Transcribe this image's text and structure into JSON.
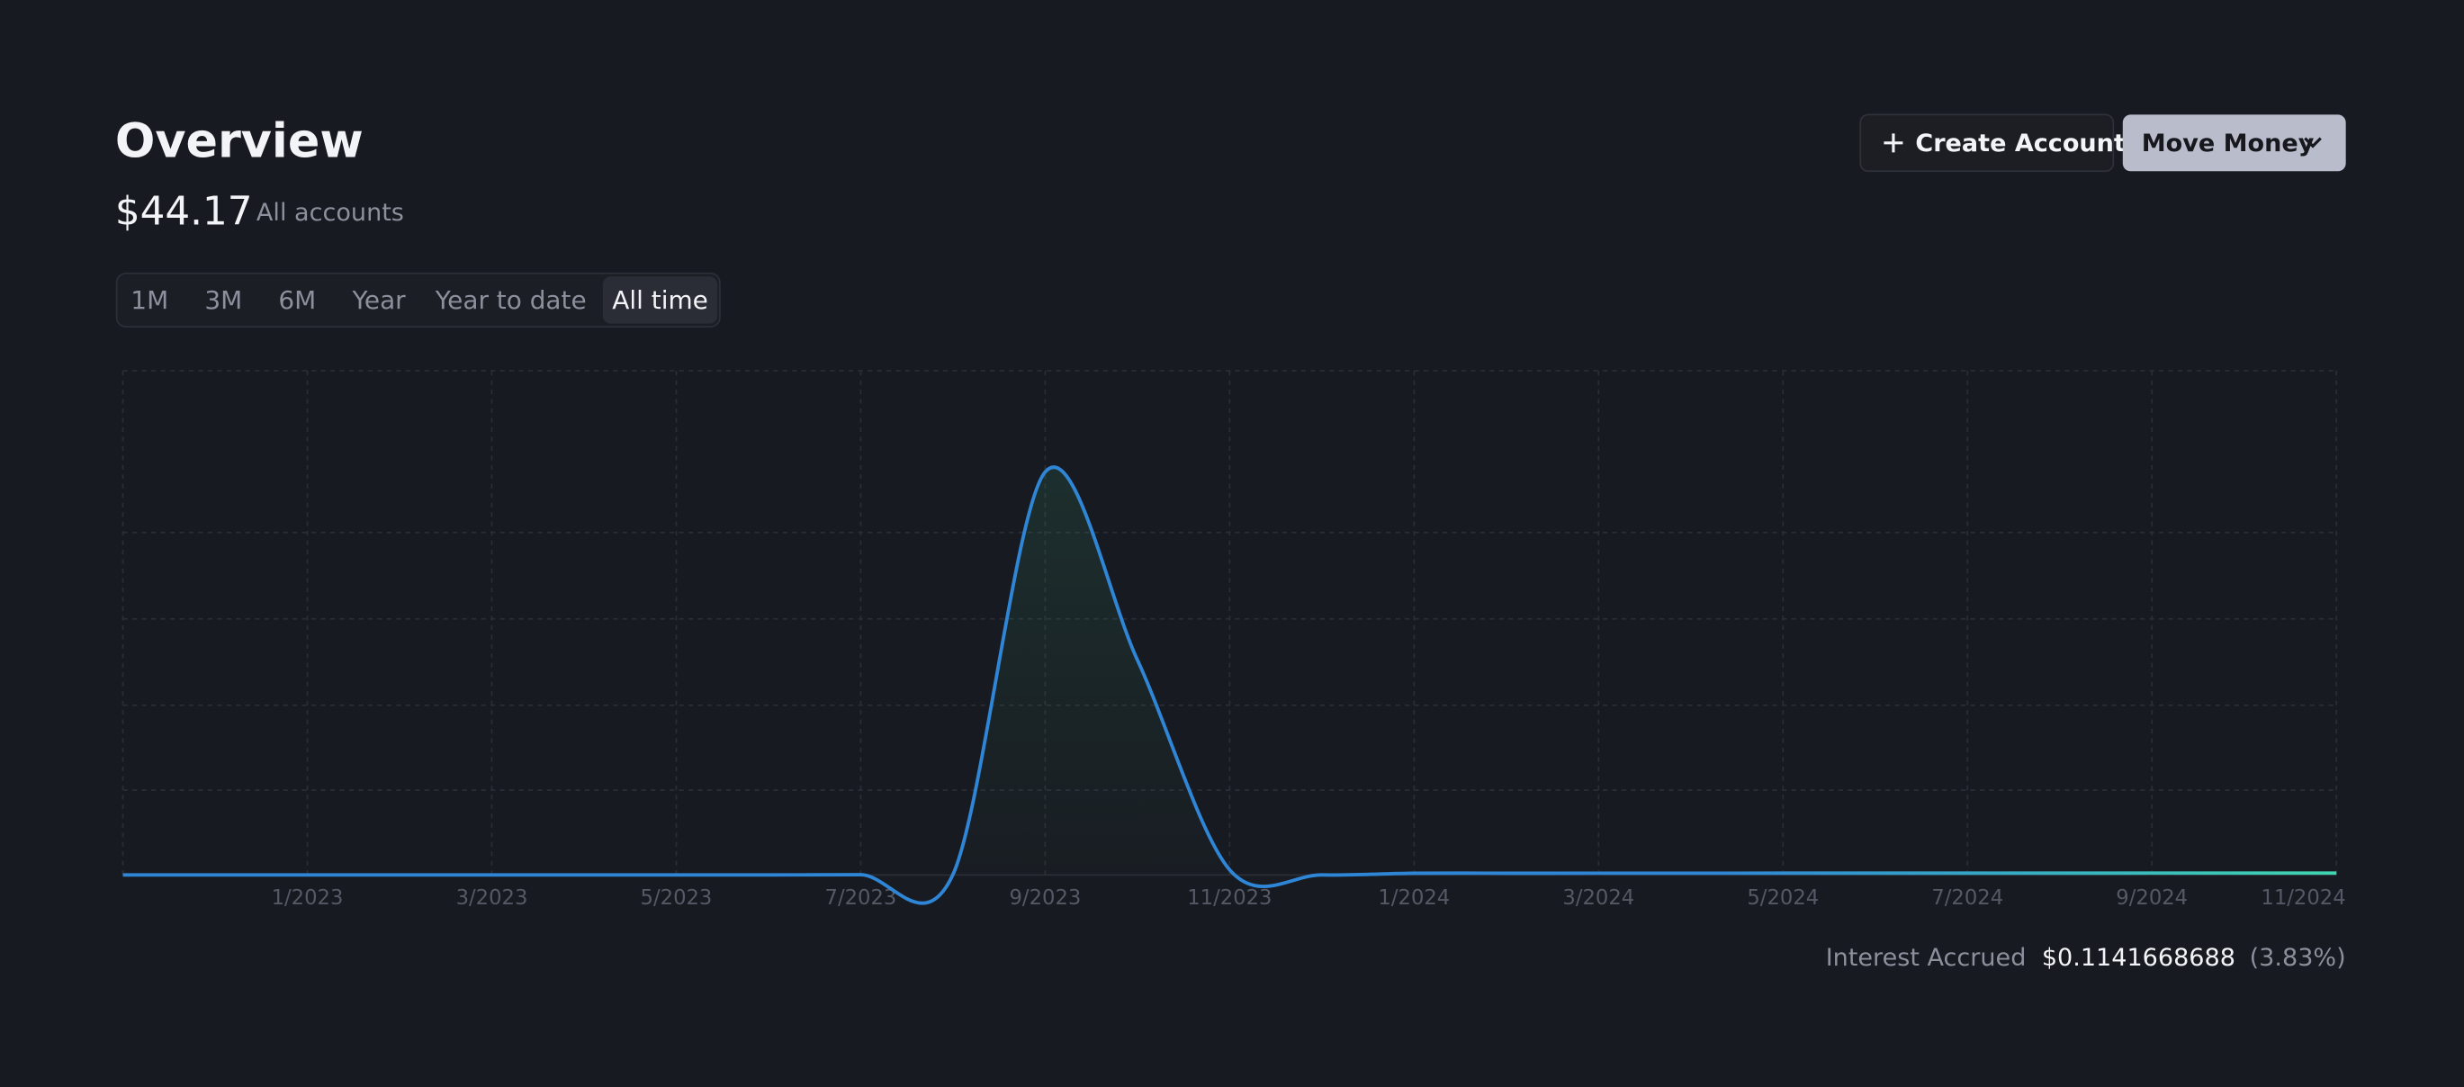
{
  "header": {
    "title": "Overview",
    "balance": "$44.17",
    "balance_label": "All accounts"
  },
  "actions": {
    "create": "Create Account",
    "move": "Move Money"
  },
  "ranges": [
    "1M",
    "3M",
    "6M",
    "Year",
    "Year to date",
    "All time"
  ],
  "active_range": "All time",
  "chart_data": {
    "type": "line",
    "x": [
      "11/2022",
      "12/2022",
      "1/2023",
      "2/2023",
      "3/2023",
      "4/2023",
      "5/2023",
      "6/2023",
      "7/2023",
      "8/2023",
      "9/2023",
      "10/2023",
      "11/2023",
      "12/2023",
      "1/2024",
      "2/2024",
      "3/2024",
      "4/2024",
      "5/2024",
      "6/2024",
      "7/2024",
      "8/2024",
      "9/2024",
      "10/2024",
      "11/2024"
    ],
    "values": [
      0,
      0,
      0,
      0,
      0,
      0,
      0,
      0,
      5,
      10,
      9430,
      5030,
      120,
      0,
      40,
      40,
      41,
      41,
      42,
      42,
      43,
      43,
      44,
      44,
      44.17
    ],
    "color": "#2f86d6",
    "xlim": [
      "11/2022",
      "11/2024"
    ],
    "xticks": [
      "1/2023",
      "3/2023",
      "5/2023",
      "7/2023",
      "9/2023",
      "11/2023",
      "1/2024",
      "3/2024",
      "5/2024",
      "7/2024",
      "9/2024",
      "11/2024"
    ],
    "ylim": [
      0,
      11800
    ],
    "grid": true
  },
  "interest": {
    "label": "Interest Accrued",
    "amount": "$0.1141668688",
    "percent": "(3.83%)"
  }
}
